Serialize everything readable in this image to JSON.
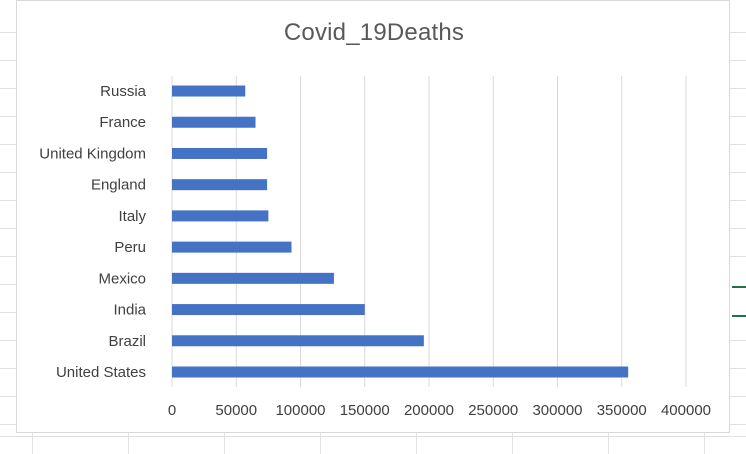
{
  "chart_data": {
    "type": "bar",
    "orientation": "horizontal",
    "title": "Covid_19Deaths",
    "categories": [
      "United States",
      "Brazil",
      "India",
      "Mexico",
      "Peru",
      "Italy",
      "England",
      "United Kingdom",
      "France",
      "Russia"
    ],
    "values": [
      355000,
      196000,
      150000,
      126000,
      93000,
      75000,
      74000,
      74000,
      65000,
      57000
    ],
    "xlim": [
      0,
      400000
    ],
    "xticks": [
      "0",
      "50000",
      "100000",
      "150000",
      "200000",
      "250000",
      "300000",
      "350000",
      "400000"
    ],
    "grid": "vertical",
    "legend": "none",
    "colors": {
      "bar": "#4472c4",
      "gridline": "#d9d9d9",
      "text": "#404040"
    }
  }
}
